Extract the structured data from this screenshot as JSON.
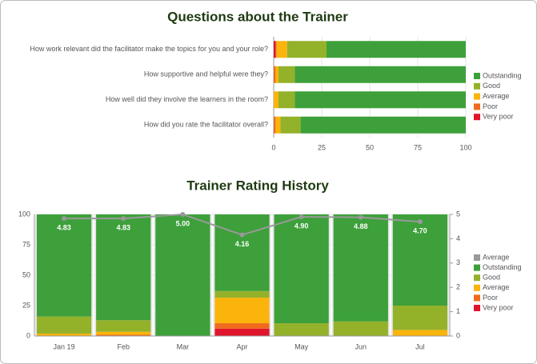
{
  "chart_data": [
    {
      "type": "bar",
      "orientation": "horizontal",
      "stacked": true,
      "title": "Questions about the Trainer",
      "categories": [
        "How work relevant did the facilitator make the topics for you and your role?",
        "How supportive and helpful were they?",
        "How well did they involve the learners in the room?",
        "How did you rate the facilitator overall?"
      ],
      "series": [
        {
          "name": "Outstanding",
          "color": "#3da03a",
          "values": [
            72.5,
            89,
            89,
            86
          ]
        },
        {
          "name": "Good",
          "color": "#94b12a",
          "values": [
            20.5,
            8.5,
            8.5,
            10.5
          ]
        },
        {
          "name": "Average",
          "color": "#fbb40b",
          "values": [
            5.5,
            1.5,
            2.5,
            2.5
          ]
        },
        {
          "name": "Poor",
          "color": "#f06a1e",
          "values": [
            0.5,
            1,
            0,
            1
          ]
        },
        {
          "name": "Very poor",
          "color": "#e0142b",
          "values": [
            1,
            0,
            0,
            0
          ]
        }
      ],
      "xlim": [
        0,
        100
      ],
      "xticks": [
        0,
        25,
        50,
        75,
        100
      ],
      "grid": true,
      "legend": "right"
    },
    {
      "type": "bar",
      "stacked": true,
      "title": "Trainer Rating History",
      "categories": [
        "Jan 19",
        "Feb",
        "Mar",
        "Apr",
        "May",
        "Jun",
        "Jul"
      ],
      "series": [
        {
          "name": "Average",
          "color": "#999999",
          "type": "line",
          "axis": "y2",
          "values": [
            4.83,
            4.83,
            5.0,
            4.16,
            4.9,
            4.88,
            4.7
          ],
          "value_labels": [
            "4.83",
            "4.83",
            "5.00",
            "4.16",
            "4.90",
            "4.88",
            "4.70"
          ]
        },
        {
          "name": "Outstanding",
          "color": "#3da03a",
          "values": [
            84,
            87,
            100,
            63,
            89.5,
            88,
            75
          ]
        },
        {
          "name": "Good",
          "color": "#94b12a",
          "values": [
            14,
            9.5,
            0,
            5.5,
            10.5,
            12,
            20
          ]
        },
        {
          "name": "Average",
          "color": "#fbb40b",
          "values": [
            2,
            2.5,
            0,
            21,
            0,
            0,
            5
          ]
        },
        {
          "name": "Poor",
          "color": "#f06a1e",
          "values": [
            0,
            1,
            0,
            4.5,
            0,
            0,
            0
          ]
        },
        {
          "name": "Very poor",
          "color": "#e0142b",
          "values": [
            0,
            0,
            0,
            6,
            0,
            0,
            0
          ]
        }
      ],
      "ylim": [
        0,
        100
      ],
      "yticks": [
        0,
        25,
        50,
        75,
        100
      ],
      "y2lim": [
        0,
        5
      ],
      "y2ticks": [
        0,
        1,
        2,
        3,
        4,
        5
      ],
      "grid": true,
      "legend": "right"
    }
  ]
}
